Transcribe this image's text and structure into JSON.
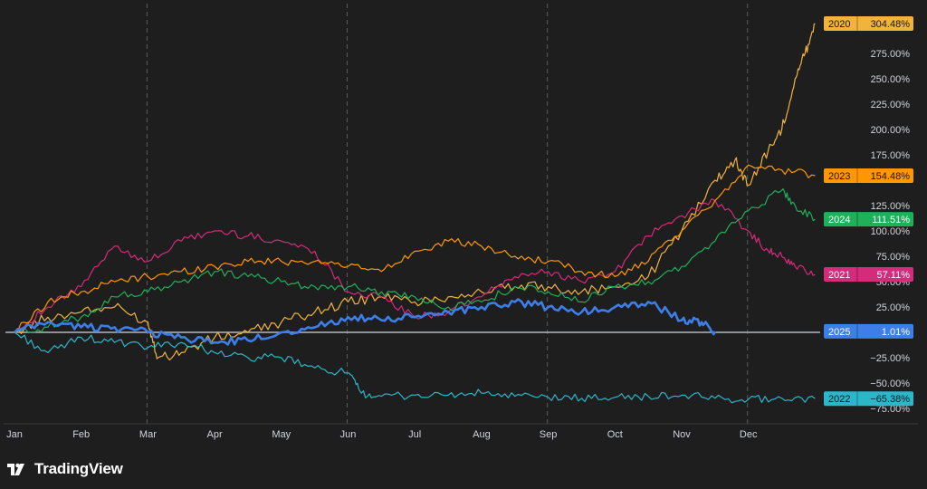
{
  "brand": {
    "name": "TradingView",
    "logo_icon": "tradingview-logo-icon"
  },
  "colors": {
    "background": "#1e1e1e",
    "grid": "#5a5a5a",
    "zero_line": "#b2b5be",
    "axis_text": "#d1d4dc"
  },
  "chart_data": {
    "type": "line",
    "title": "",
    "xlabel": "",
    "ylabel": "",
    "y_unit": "%",
    "x_tick_labels": [
      "Jan",
      "Feb",
      "Mar",
      "Apr",
      "May",
      "Jun",
      "Jul",
      "Aug",
      "Sep",
      "Oct",
      "Nov",
      "Dec"
    ],
    "y_tick_labels": [
      "275.00%",
      "250.00%",
      "225.00%",
      "200.00%",
      "175.00%",
      "125.00%",
      "100.00%",
      "75.00%",
      "50.00%",
      "25.00%",
      "−25.00%",
      "−50.00%",
      "−75.00%"
    ],
    "y_ticks": [
      275,
      250,
      225,
      200,
      175,
      125,
      100,
      75,
      50,
      25,
      -25,
      -50,
      -75
    ],
    "ylim": [
      -80,
      305
    ],
    "xlim": [
      0,
      12
    ],
    "grid": "vertical dashed lines at Mar, Jun, Sep, Dec",
    "zero_line": true,
    "legend": "value tags at right edge",
    "series": [
      {
        "name": "2020",
        "label": "304.48%",
        "color": "#f0b43c",
        "tag_text_color": "#131722",
        "x": [
          0,
          0.5,
          1,
          1.5,
          2,
          2.15,
          2.5,
          3,
          3.5,
          4,
          4.5,
          5,
          5.5,
          6,
          6.5,
          7,
          7.5,
          8,
          8.5,
          9,
          9.5,
          10,
          10.5,
          10.8,
          11,
          11.3,
          11.5,
          11.7,
          11.85,
          12
        ],
        "y": [
          0,
          15,
          20,
          25,
          10,
          -25,
          -20,
          -5,
          0,
          10,
          20,
          30,
          35,
          30,
          35,
          40,
          45,
          45,
          40,
          45,
          55,
          100,
          150,
          170,
          145,
          180,
          200,
          250,
          275,
          304.48
        ]
      },
      {
        "name": "2021",
        "label": "57.11%",
        "color": "#d42b7a",
        "tag_text_color": "#ffffff",
        "x": [
          0,
          0.5,
          1,
          1.5,
          2,
          2.5,
          3,
          3.5,
          4,
          4.5,
          5,
          5.5,
          6,
          6.5,
          7,
          7.5,
          8,
          8.5,
          9,
          9.5,
          10,
          10.5,
          11,
          11.3,
          11.5,
          11.7,
          12
        ],
        "y": [
          0,
          25,
          45,
          85,
          70,
          90,
          100,
          95,
          90,
          80,
          40,
          35,
          15,
          20,
          35,
          55,
          60,
          50,
          60,
          95,
          115,
          130,
          100,
          80,
          75,
          65,
          57.11
        ]
      },
      {
        "name": "2022",
        "label": "−65.38%",
        "color": "#2bb6c9",
        "tag_text_color": "#131722",
        "x": [
          0,
          0.5,
          1,
          1.5,
          2,
          2.5,
          3,
          3.5,
          4,
          4.5,
          5,
          5.2,
          5.5,
          6,
          6.5,
          7,
          7.5,
          8,
          8.5,
          9,
          9.5,
          10,
          10.5,
          11,
          11.5,
          12
        ],
        "y": [
          0,
          -20,
          -5,
          -10,
          -15,
          -10,
          -20,
          -25,
          -25,
          -35,
          -40,
          -60,
          -63,
          -62,
          -62,
          -60,
          -63,
          -64,
          -65,
          -64,
          -63,
          -62,
          -65,
          -66,
          -65,
          -65.38
        ]
      },
      {
        "name": "2023",
        "label": "154.48%",
        "color": "#ff9800",
        "tag_text_color": "#131722",
        "x": [
          0,
          0.5,
          1,
          1.5,
          2,
          2.5,
          3,
          3.5,
          4,
          4.5,
          5,
          5.5,
          6,
          6.5,
          7,
          7.5,
          8,
          8.5,
          9,
          9.5,
          10,
          10.5,
          11,
          11.5,
          12
        ],
        "y": [
          0,
          30,
          40,
          50,
          55,
          60,
          65,
          70,
          70,
          70,
          65,
          60,
          80,
          90,
          85,
          75,
          70,
          60,
          55,
          70,
          100,
          130,
          165,
          160,
          154.48
        ]
      },
      {
        "name": "2024",
        "label": "111.51%",
        "color": "#1fb05a",
        "tag_text_color": "#ffffff",
        "x": [
          0,
          0.5,
          1,
          1.5,
          2,
          2.5,
          3,
          3.5,
          4,
          4.5,
          5,
          5.5,
          6,
          6.5,
          7,
          7.5,
          8,
          8.5,
          9,
          9.5,
          10,
          10.5,
          11,
          11.5,
          11.7,
          12
        ],
        "y": [
          0,
          5,
          15,
          35,
          40,
          50,
          60,
          55,
          50,
          45,
          45,
          40,
          35,
          25,
          30,
          45,
          40,
          30,
          45,
          50,
          65,
          90,
          120,
          140,
          125,
          111.51
        ]
      },
      {
        "name": "2025",
        "label": "1.01%",
        "color": "#3d7ee8",
        "tag_text_color": "#ffffff",
        "x": [
          0,
          0.5,
          1,
          1.5,
          2,
          2.5,
          3,
          3.5,
          4,
          4.5,
          5,
          5.5,
          6,
          6.5,
          7,
          7.5,
          8,
          8.5,
          9,
          9.5,
          10,
          10.3,
          10.5
        ],
        "y": [
          0,
          10,
          5,
          5,
          0,
          -5,
          -10,
          -8,
          0,
          5,
          15,
          12,
          15,
          20,
          25,
          30,
          25,
          20,
          25,
          30,
          12,
          10,
          1.01
        ]
      }
    ]
  }
}
